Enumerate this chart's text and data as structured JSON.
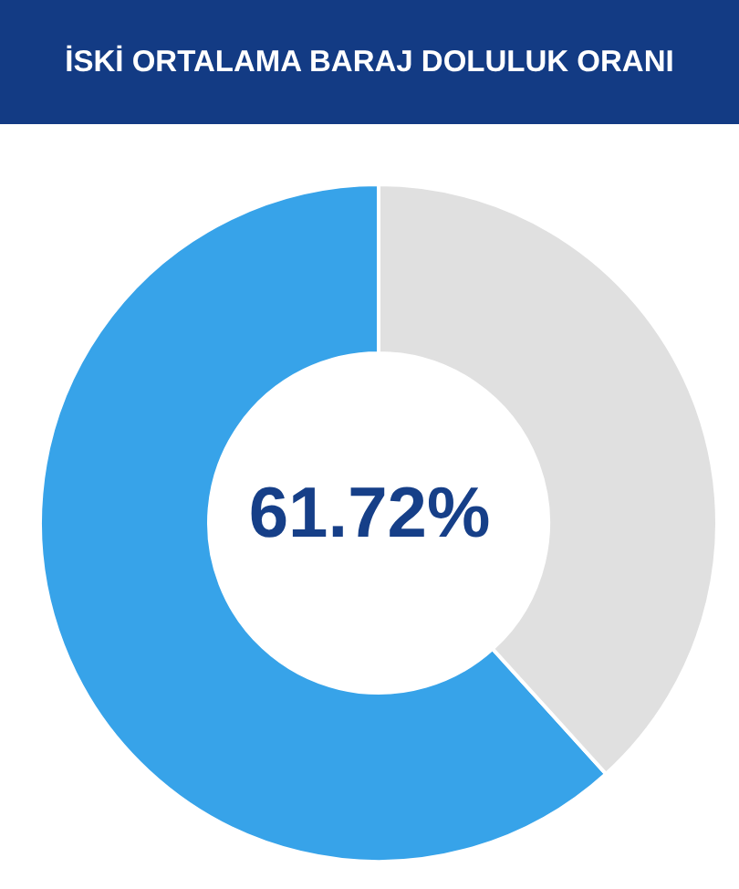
{
  "chart_data": {
    "type": "donut",
    "title": "İSKİ ORTALAMA BARAJ DOLULUK ORANI",
    "categories": [
      null,
      null
    ],
    "values": [
      61.72,
      38.28
    ],
    "colors": [
      "#37a3e9",
      "#e0e0e0"
    ],
    "annotations": [
      "61.72%"
    ]
  }
}
